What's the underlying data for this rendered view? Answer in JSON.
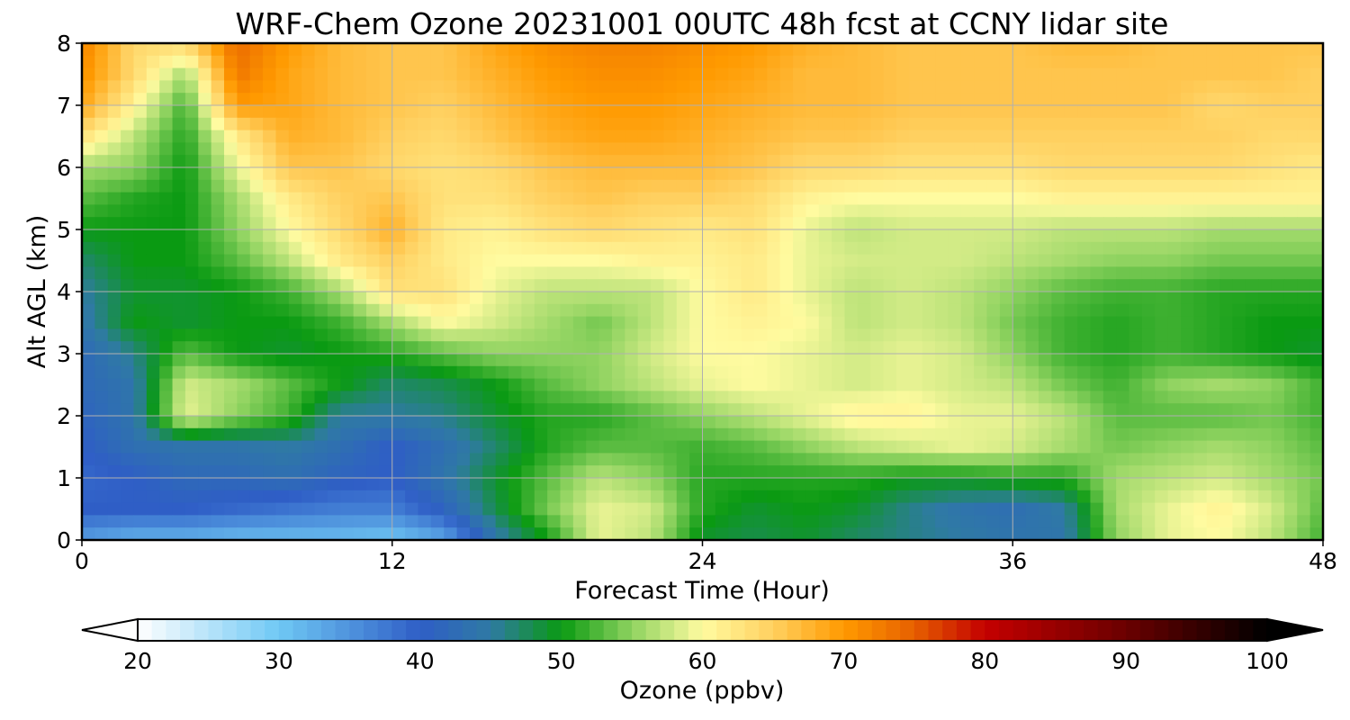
{
  "chart_data": {
    "type": "heatmap",
    "title": "WRF-Chem Ozone  20231001 00UTC 48h fcst at CCNY lidar site",
    "xlabel": "Forecast Time (Hour)",
    "ylabel": "Alt AGL (km)",
    "xlim": [
      0,
      48
    ],
    "ylim": [
      0,
      8
    ],
    "xticks": [
      0,
      12,
      24,
      36,
      48
    ],
    "yticks": [
      0,
      1,
      2,
      3,
      4,
      5,
      6,
      7,
      8
    ],
    "grid": true,
    "x": [
      0,
      2,
      4,
      6,
      8,
      10,
      12,
      14,
      16,
      18,
      20,
      22,
      24,
      26,
      28,
      30,
      32,
      34,
      36,
      38,
      40,
      42,
      44,
      46,
      48
    ],
    "y": [
      0,
      0.5,
      1,
      1.5,
      2,
      2.5,
      3,
      3.5,
      4,
      4.5,
      5,
      5.5,
      6,
      6.5,
      7,
      7.5,
      8
    ],
    "z": [
      [
        34,
        32,
        32,
        31,
        31,
        31,
        30,
        33,
        44,
        50,
        59,
        57,
        49,
        48,
        49,
        47,
        46,
        45,
        44,
        44,
        55,
        59,
        60,
        57,
        52
      ],
      [
        40,
        40,
        40,
        39,
        38,
        37,
        37,
        41,
        48,
        54,
        59,
        58,
        51,
        49,
        50,
        49,
        46,
        44,
        43,
        45,
        56,
        59,
        61,
        58,
        53
      ],
      [
        39,
        40,
        42,
        42,
        43,
        41,
        40,
        44,
        49,
        53,
        57,
        55,
        51,
        51,
        51,
        51,
        50,
        50,
        51,
        51,
        56,
        57,
        58,
        56,
        54
      ],
      [
        40,
        43,
        44,
        44,
        45,
        43,
        40,
        43,
        47,
        51,
        53,
        53,
        52,
        53,
        55,
        57,
        58,
        59,
        58,
        56,
        54,
        55,
        56,
        55,
        53
      ],
      [
        41,
        44,
        59,
        55,
        52,
        45,
        45,
        46,
        49,
        51,
        51,
        53,
        55,
        57,
        59,
        61,
        61,
        59,
        59,
        57,
        53,
        53,
        53,
        54,
        52
      ],
      [
        42,
        44,
        58,
        56,
        53,
        50,
        47,
        48,
        50,
        53,
        55,
        57,
        59,
        60,
        59,
        58,
        59,
        58,
        57,
        54,
        52,
        55,
        56,
        55,
        52
      ],
      [
        42,
        46,
        53,
        50,
        49,
        50,
        51,
        53,
        55,
        55,
        55,
        58,
        60,
        60,
        59,
        58,
        59,
        58,
        55,
        52,
        51,
        52,
        51,
        50,
        49
      ],
      [
        44,
        50,
        49,
        50,
        50,
        52,
        56,
        60,
        58,
        56,
        54,
        57,
        60,
        61,
        60,
        57,
        58,
        57,
        54,
        52,
        51,
        52,
        51,
        50,
        50
      ],
      [
        45,
        49,
        49,
        50,
        52,
        56,
        63,
        63,
        59,
        57,
        57,
        57,
        60,
        62,
        59,
        57,
        58,
        57,
        55,
        53,
        52,
        52,
        51,
        51,
        51
      ],
      [
        47,
        50,
        50,
        53,
        57,
        62,
        65,
        62,
        60,
        60,
        60,
        61,
        61,
        62,
        59,
        58,
        58,
        58,
        57,
        56,
        55,
        55,
        54,
        54,
        54
      ],
      [
        50,
        50,
        50,
        55,
        60,
        64,
        68,
        62,
        61,
        63,
        64,
        63,
        62,
        63,
        59,
        57,
        58,
        58,
        58,
        57,
        57,
        57,
        56,
        56,
        56
      ],
      [
        53,
        51,
        50,
        56,
        62,
        65,
        66,
        63,
        63,
        65,
        66,
        65,
        65,
        64,
        61,
        60,
        60,
        60,
        60,
        61,
        61,
        61,
        61,
        61,
        61
      ],
      [
        56,
        55,
        50,
        59,
        66,
        66,
        64,
        63,
        64,
        66,
        67,
        67,
        67,
        66,
        64,
        64,
        63,
        63,
        63,
        64,
        64,
        64,
        64,
        63,
        62
      ],
      [
        63,
        57,
        51,
        62,
        68,
        67,
        65,
        64,
        66,
        68,
        69,
        69,
        68,
        67,
        66,
        66,
        65,
        65,
        65,
        65,
        65,
        65,
        65,
        64,
        64
      ],
      [
        69,
        61,
        52,
        70,
        69,
        67,
        66,
        65,
        67,
        69,
        70,
        70,
        69,
        68,
        67,
        67,
        66,
        66,
        66,
        66,
        66,
        66,
        64,
        65,
        65
      ],
      [
        71,
        64,
        56,
        73,
        69,
        67,
        66,
        66,
        68,
        70,
        71,
        71,
        70,
        69,
        67,
        67,
        66,
        66,
        66,
        66,
        66,
        66,
        66,
        66,
        65
      ],
      [
        72,
        64,
        64,
        74,
        70,
        67,
        66,
        66,
        69,
        71,
        72,
        72,
        71,
        70,
        68,
        67,
        66,
        66,
        66,
        67,
        67,
        66,
        66,
        66,
        66
      ]
    ],
    "colorbar": {
      "label": "Ozone  (ppbv)",
      "range": [
        20,
        100
      ],
      "ticks": [
        20,
        30,
        40,
        50,
        60,
        70,
        80,
        90,
        100
      ],
      "extend": "both",
      "stops": [
        [
          20,
          "#ffffff"
        ],
        [
          30,
          "#6fc8f4"
        ],
        [
          40,
          "#2f5ec6"
        ],
        [
          45,
          "#2f7aa4"
        ],
        [
          50,
          "#0a9a12"
        ],
        [
          55,
          "#8fd360"
        ],
        [
          60,
          "#fffba0"
        ],
        [
          65,
          "#ffd060"
        ],
        [
          70,
          "#ff9a00"
        ],
        [
          75,
          "#e66000"
        ],
        [
          80,
          "#c40000"
        ],
        [
          90,
          "#6a0000"
        ],
        [
          100,
          "#000000"
        ]
      ]
    }
  }
}
